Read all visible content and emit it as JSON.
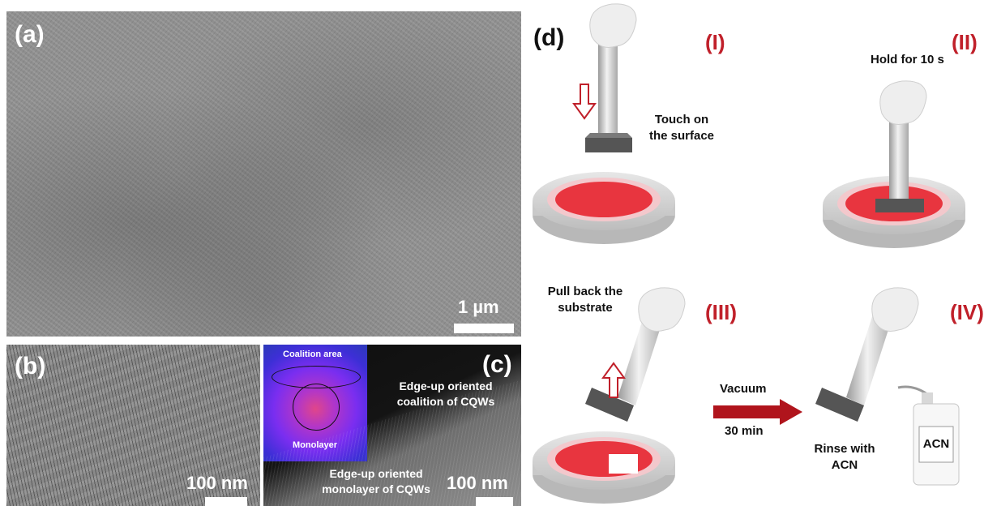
{
  "panel_a": {
    "label": "(a)",
    "scale": "1 µm"
  },
  "panel_b": {
    "label": "(b)",
    "scale": "100 nm"
  },
  "panel_c": {
    "label": "(c)",
    "scale": "100 nm",
    "inset_top": "Coalition area",
    "inset_bottom": "Monolayer",
    "upper_text": "Edge-up oriented\ncoalition of CQWs",
    "lower_text": "Edge-up oriented\nmonolayer of CQWs"
  },
  "panel_d": {
    "label": "(d)",
    "steps": [
      "(I)",
      "(II)",
      "(III)",
      "(IV)"
    ],
    "step1_caption": "Touch on\nthe surface",
    "step2_caption": "Hold for 10 s",
    "step3_caption": "Pull back the\nsubstrate",
    "arrow_top": "Vacuum",
    "arrow_bottom": "30 min",
    "step4_caption": "Rinse with\nACN",
    "bottle_label": "ACN",
    "colors": {
      "accent": "#c0202a",
      "film": "#e8353f"
    }
  }
}
